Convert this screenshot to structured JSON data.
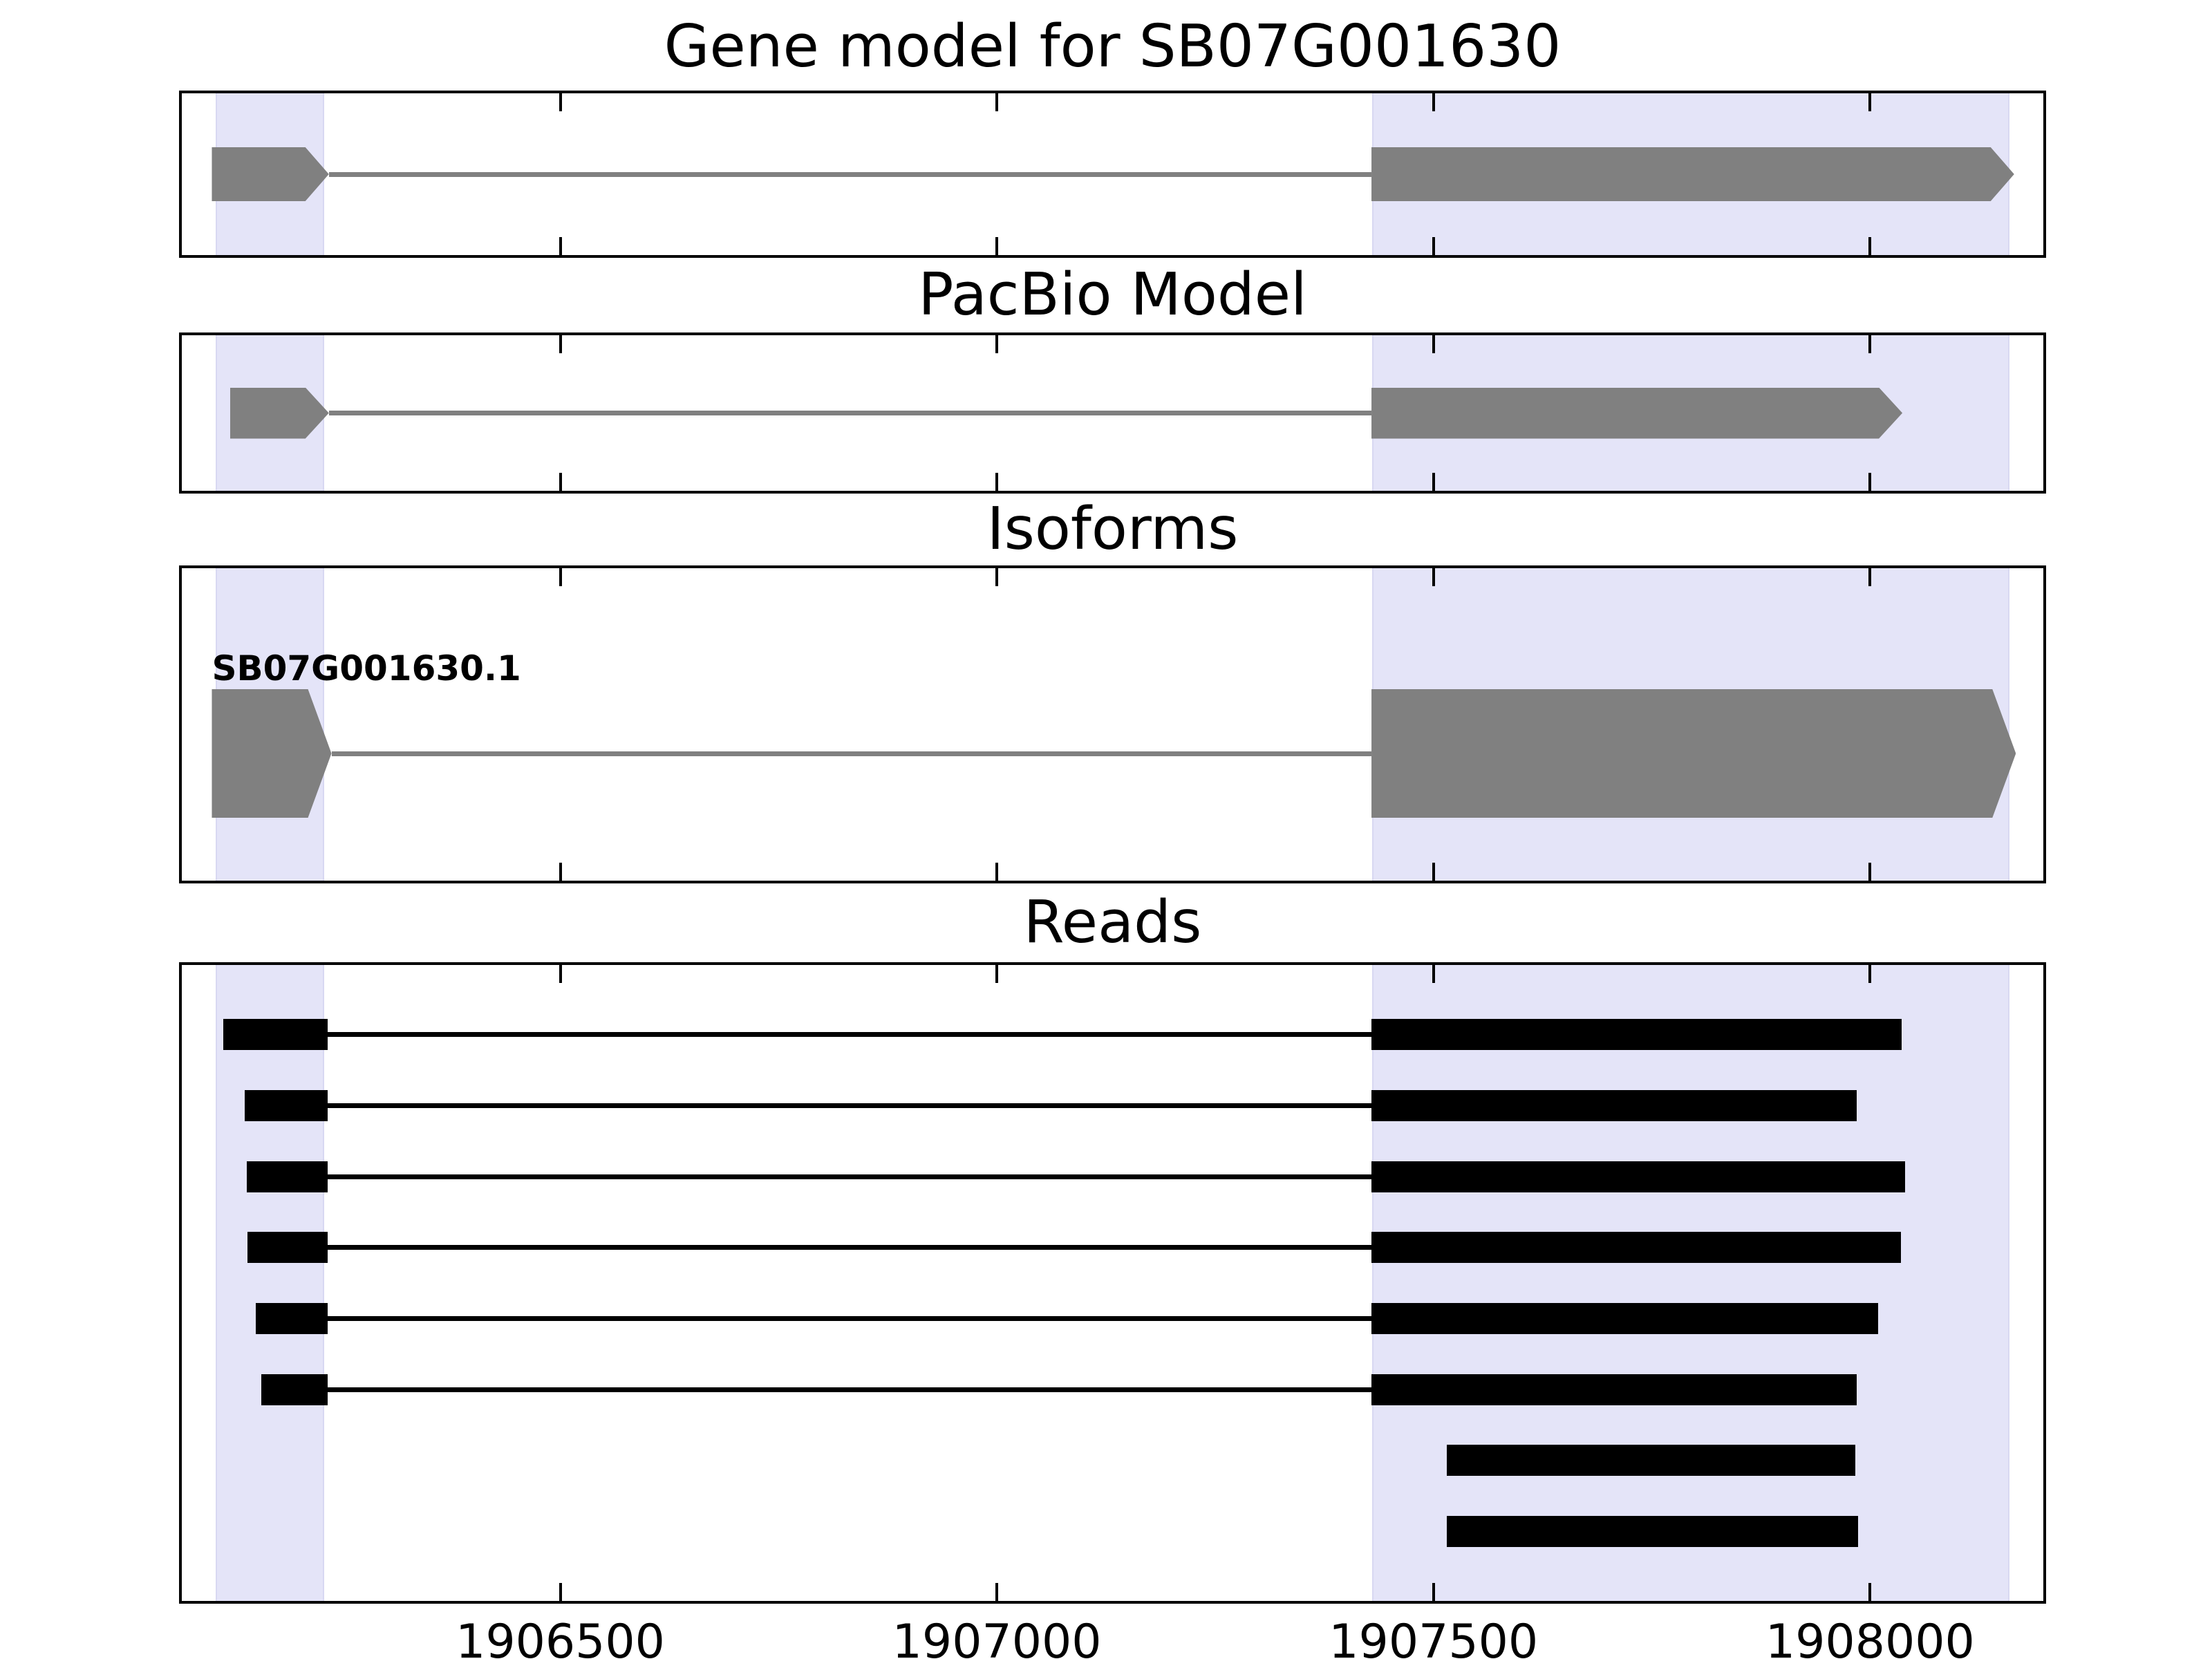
{
  "figure": {
    "background": "#ffffff",
    "border_color": "#000000"
  },
  "chart_data": {
    "type": "gene-model-tracks",
    "title": "Gene model for SB07G001630",
    "x_axis": {
      "domain": [
        1906065,
        1908200
      ],
      "ticks": [
        1906500,
        1907000,
        1907500,
        1908000
      ],
      "tick_labels": [
        "1906500",
        "1907000",
        "1907500",
        "1908000"
      ],
      "tick_position": "inside-top-and-bottom",
      "grid": false
    },
    "highlight_regions": [
      {
        "start": 1906105,
        "end": 1906230,
        "color": "#E4E4F8"
      },
      {
        "start": 1907430,
        "end": 1908160,
        "color": "#E4E4F8"
      }
    ],
    "panels": [
      {
        "title": "Gene model for SB07G001630",
        "features": [
          {
            "kind": "transcript",
            "strand": "+",
            "color": "#808080",
            "label": null,
            "exons": [
              [
                1906101,
                1906235
              ],
              [
                1907429,
                1908165
              ]
            ]
          }
        ]
      },
      {
        "title": "PacBio Model",
        "features": [
          {
            "kind": "transcript",
            "strand": "+",
            "color": "#808080",
            "label": null,
            "exons": [
              [
                1906122,
                1906235
              ],
              [
                1907429,
                1908037
              ]
            ]
          }
        ]
      },
      {
        "title": "Isoforms",
        "features": [
          {
            "kind": "transcript",
            "strand": "+",
            "color": "#808080",
            "label": "SB07G001630.1",
            "exons": [
              [
                1906101,
                1906238
              ],
              [
                1907429,
                1908167
              ]
            ]
          }
        ]
      },
      {
        "title": "Reads",
        "features": [
          {
            "kind": "read",
            "color": "#000000",
            "label": null,
            "exons": [
              [
                1906114,
                1906234
              ],
              [
                1907429,
                1908036
              ]
            ]
          },
          {
            "kind": "read",
            "color": "#000000",
            "label": null,
            "exons": [
              [
                1906139,
                1906234
              ],
              [
                1907429,
                1907985
              ]
            ]
          },
          {
            "kind": "read",
            "color": "#000000",
            "label": null,
            "exons": [
              [
                1906141,
                1906234
              ],
              [
                1907429,
                1908040
              ]
            ]
          },
          {
            "kind": "read",
            "color": "#000000",
            "label": null,
            "exons": [
              [
                1906142,
                1906234
              ],
              [
                1907429,
                1908035
              ]
            ]
          },
          {
            "kind": "read",
            "color": "#000000",
            "label": null,
            "exons": [
              [
                1906151,
                1906234
              ],
              [
                1907429,
                1908009
              ]
            ]
          },
          {
            "kind": "read",
            "color": "#000000",
            "label": null,
            "exons": [
              [
                1906158,
                1906234
              ],
              [
                1907429,
                1907985
              ]
            ]
          },
          {
            "kind": "read",
            "color": "#000000",
            "label": null,
            "exons": [
              [
                1907515,
                1907983
              ]
            ]
          },
          {
            "kind": "read",
            "color": "#000000",
            "label": null,
            "exons": [
              [
                1907515,
                1907986
              ]
            ]
          }
        ]
      }
    ]
  }
}
